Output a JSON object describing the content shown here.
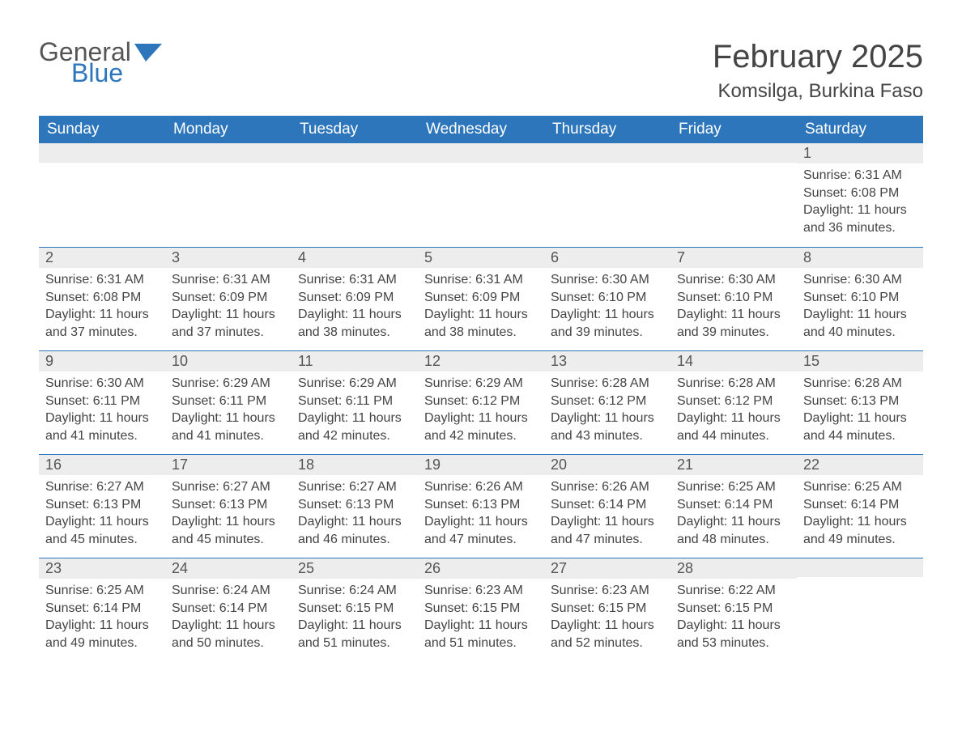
{
  "logo": {
    "general": "General",
    "blue": "Blue",
    "icon_color": "#2d76bc"
  },
  "title": "February 2025",
  "location": "Komsilga, Burkina Faso",
  "header_bg": "#2d76bc",
  "header_fg": "#ffffff",
  "stripe_bg": "#ededed",
  "rule_color": "#2d76bc",
  "text_color": "#444444",
  "columns": [
    "Sunday",
    "Monday",
    "Tuesday",
    "Wednesday",
    "Thursday",
    "Friday",
    "Saturday"
  ],
  "weeks": [
    [
      null,
      null,
      null,
      null,
      null,
      null,
      {
        "n": "1",
        "sunrise": "6:31 AM",
        "sunset": "6:08 PM",
        "daylight": "11 hours and 36 minutes."
      }
    ],
    [
      {
        "n": "2",
        "sunrise": "6:31 AM",
        "sunset": "6:08 PM",
        "daylight": "11 hours and 37 minutes."
      },
      {
        "n": "3",
        "sunrise": "6:31 AM",
        "sunset": "6:09 PM",
        "daylight": "11 hours and 37 minutes."
      },
      {
        "n": "4",
        "sunrise": "6:31 AM",
        "sunset": "6:09 PM",
        "daylight": "11 hours and 38 minutes."
      },
      {
        "n": "5",
        "sunrise": "6:31 AM",
        "sunset": "6:09 PM",
        "daylight": "11 hours and 38 minutes."
      },
      {
        "n": "6",
        "sunrise": "6:30 AM",
        "sunset": "6:10 PM",
        "daylight": "11 hours and 39 minutes."
      },
      {
        "n": "7",
        "sunrise": "6:30 AM",
        "sunset": "6:10 PM",
        "daylight": "11 hours and 39 minutes."
      },
      {
        "n": "8",
        "sunrise": "6:30 AM",
        "sunset": "6:10 PM",
        "daylight": "11 hours and 40 minutes."
      }
    ],
    [
      {
        "n": "9",
        "sunrise": "6:30 AM",
        "sunset": "6:11 PM",
        "daylight": "11 hours and 41 minutes."
      },
      {
        "n": "10",
        "sunrise": "6:29 AM",
        "sunset": "6:11 PM",
        "daylight": "11 hours and 41 minutes."
      },
      {
        "n": "11",
        "sunrise": "6:29 AM",
        "sunset": "6:11 PM",
        "daylight": "11 hours and 42 minutes."
      },
      {
        "n": "12",
        "sunrise": "6:29 AM",
        "sunset": "6:12 PM",
        "daylight": "11 hours and 42 minutes."
      },
      {
        "n": "13",
        "sunrise": "6:28 AM",
        "sunset": "6:12 PM",
        "daylight": "11 hours and 43 minutes."
      },
      {
        "n": "14",
        "sunrise": "6:28 AM",
        "sunset": "6:12 PM",
        "daylight": "11 hours and 44 minutes."
      },
      {
        "n": "15",
        "sunrise": "6:28 AM",
        "sunset": "6:13 PM",
        "daylight": "11 hours and 44 minutes."
      }
    ],
    [
      {
        "n": "16",
        "sunrise": "6:27 AM",
        "sunset": "6:13 PM",
        "daylight": "11 hours and 45 minutes."
      },
      {
        "n": "17",
        "sunrise": "6:27 AM",
        "sunset": "6:13 PM",
        "daylight": "11 hours and 45 minutes."
      },
      {
        "n": "18",
        "sunrise": "6:27 AM",
        "sunset": "6:13 PM",
        "daylight": "11 hours and 46 minutes."
      },
      {
        "n": "19",
        "sunrise": "6:26 AM",
        "sunset": "6:13 PM",
        "daylight": "11 hours and 47 minutes."
      },
      {
        "n": "20",
        "sunrise": "6:26 AM",
        "sunset": "6:14 PM",
        "daylight": "11 hours and 47 minutes."
      },
      {
        "n": "21",
        "sunrise": "6:25 AM",
        "sunset": "6:14 PM",
        "daylight": "11 hours and 48 minutes."
      },
      {
        "n": "22",
        "sunrise": "6:25 AM",
        "sunset": "6:14 PM",
        "daylight": "11 hours and 49 minutes."
      }
    ],
    [
      {
        "n": "23",
        "sunrise": "6:25 AM",
        "sunset": "6:14 PM",
        "daylight": "11 hours and 49 minutes."
      },
      {
        "n": "24",
        "sunrise": "6:24 AM",
        "sunset": "6:14 PM",
        "daylight": "11 hours and 50 minutes."
      },
      {
        "n": "25",
        "sunrise": "6:24 AM",
        "sunset": "6:15 PM",
        "daylight": "11 hours and 51 minutes."
      },
      {
        "n": "26",
        "sunrise": "6:23 AM",
        "sunset": "6:15 PM",
        "daylight": "11 hours and 51 minutes."
      },
      {
        "n": "27",
        "sunrise": "6:23 AM",
        "sunset": "6:15 PM",
        "daylight": "11 hours and 52 minutes."
      },
      {
        "n": "28",
        "sunrise": "6:22 AM",
        "sunset": "6:15 PM",
        "daylight": "11 hours and 53 minutes."
      },
      null
    ]
  ],
  "labels": {
    "sunrise": "Sunrise: ",
    "sunset": "Sunset: ",
    "daylight": "Daylight: "
  }
}
